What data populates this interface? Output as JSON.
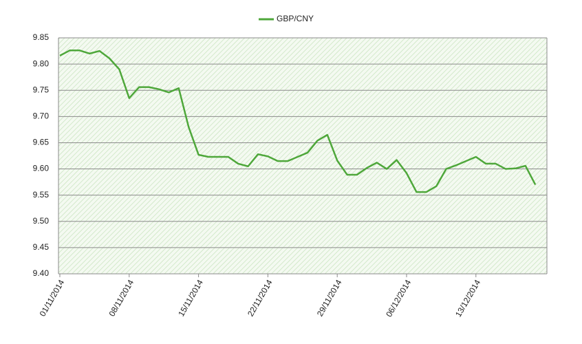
{
  "chart_data": {
    "type": "line",
    "categories": [
      "01/11/2014",
      null,
      null,
      null,
      null,
      null,
      null,
      "08/11/2014",
      null,
      null,
      null,
      null,
      null,
      null,
      "15/11/2014",
      null,
      null,
      null,
      null,
      null,
      null,
      "22/11/2014",
      null,
      null,
      null,
      null,
      null,
      null,
      "29/11/2014",
      null,
      null,
      null,
      null,
      null,
      null,
      "06/12/2014",
      null,
      null,
      null,
      null,
      null,
      null,
      "13/12/2014",
      null,
      null,
      null,
      null,
      null,
      null
    ],
    "series": [
      {
        "name": "GBP/CNY",
        "color": "#4ea73a",
        "values": [
          9.816,
          9.826,
          9.826,
          9.82,
          9.825,
          9.811,
          9.79,
          9.735,
          9.756,
          9.756,
          9.752,
          9.746,
          9.754,
          9.68,
          9.627,
          9.623,
          9.623,
          9.623,
          9.61,
          9.605,
          9.628,
          9.624,
          9.615,
          9.615,
          9.623,
          9.631,
          9.654,
          9.665,
          9.616,
          9.589,
          9.589,
          9.602,
          9.612,
          9.6,
          9.617,
          9.592,
          9.556,
          9.556,
          9.567,
          9.6,
          9.607,
          9.615,
          9.623,
          9.61,
          9.61,
          9.6,
          9.601,
          9.606,
          9.57
        ]
      }
    ],
    "ylim": [
      9.4,
      9.85
    ],
    "yticks": [
      {
        "value": 9.4,
        "label": "9.40"
      },
      9.45,
      {
        "value": 9.5,
        "label": "9.50"
      },
      9.55,
      {
        "value": 9.6,
        "label": "9.60"
      },
      9.65,
      {
        "value": 9.7,
        "label": "9.70"
      },
      9.75,
      {
        "value": 9.8,
        "label": "9.80"
      },
      9.85
    ],
    "grid": true,
    "legend": "top"
  }
}
